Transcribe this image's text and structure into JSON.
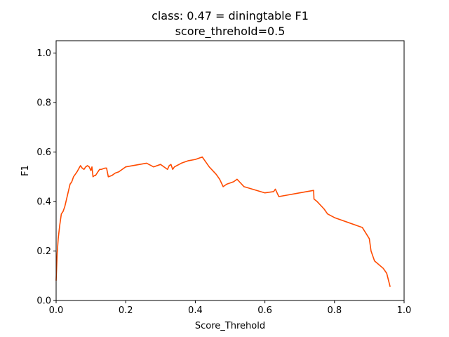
{
  "chart_data": {
    "type": "line",
    "title": "class: 0.47 = diningtable F1",
    "subtitle": "score_threhold=0.5",
    "xlabel": "Score_Threhold",
    "ylabel": "F1",
    "xlim": [
      0.0,
      1.0
    ],
    "ylim": [
      0.0,
      1.05
    ],
    "xticks": [
      0.0,
      0.2,
      0.4,
      0.6,
      0.8,
      1.0
    ],
    "xtick_labels": [
      "0.0",
      "0.2",
      "0.4",
      "0.6",
      "0.8",
      "1.0"
    ],
    "yticks": [
      0.0,
      0.2,
      0.4,
      0.6,
      0.8,
      1.0
    ],
    "ytick_labels": [
      "0.0",
      "0.2",
      "0.4",
      "0.6",
      "0.8",
      "1.0"
    ],
    "grid": false,
    "series": [
      {
        "color": "#ff4b00",
        "x": [
          0.0,
          0.003,
          0.006,
          0.01,
          0.015,
          0.02,
          0.025,
          0.03,
          0.035,
          0.04,
          0.045,
          0.05,
          0.055,
          0.06,
          0.07,
          0.075,
          0.08,
          0.085,
          0.09,
          0.095,
          0.1,
          0.103,
          0.106,
          0.11,
          0.113,
          0.12,
          0.125,
          0.13,
          0.14,
          0.145,
          0.15,
          0.16,
          0.17,
          0.18,
          0.2,
          0.26,
          0.28,
          0.3,
          0.32,
          0.325,
          0.33,
          0.335,
          0.34,
          0.36,
          0.38,
          0.4,
          0.42,
          0.43,
          0.44,
          0.46,
          0.47,
          0.48,
          0.49,
          0.5,
          0.51,
          0.52,
          0.53,
          0.54,
          0.6,
          0.625,
          0.63,
          0.64,
          0.66,
          0.7,
          0.74,
          0.741,
          0.75,
          0.77,
          0.78,
          0.8,
          0.88,
          0.9,
          0.905,
          0.915,
          0.94,
          0.95,
          0.96
        ],
        "y": [
          0.08,
          0.19,
          0.25,
          0.3,
          0.35,
          0.36,
          0.38,
          0.41,
          0.44,
          0.47,
          0.48,
          0.5,
          0.51,
          0.52,
          0.545,
          0.535,
          0.53,
          0.54,
          0.545,
          0.54,
          0.525,
          0.54,
          0.5,
          0.505,
          0.505,
          0.52,
          0.53,
          0.53,
          0.535,
          0.535,
          0.5,
          0.505,
          0.515,
          0.52,
          0.54,
          0.555,
          0.54,
          0.55,
          0.53,
          0.545,
          0.55,
          0.53,
          0.54,
          0.555,
          0.565,
          0.57,
          0.58,
          0.56,
          0.54,
          0.51,
          0.49,
          0.46,
          0.47,
          0.475,
          0.48,
          0.49,
          0.475,
          0.46,
          0.435,
          0.44,
          0.45,
          0.42,
          0.425,
          0.435,
          0.445,
          0.41,
          0.4,
          0.37,
          0.35,
          0.335,
          0.295,
          0.25,
          0.2,
          0.16,
          0.13,
          0.11,
          0.055
        ]
      }
    ]
  }
}
